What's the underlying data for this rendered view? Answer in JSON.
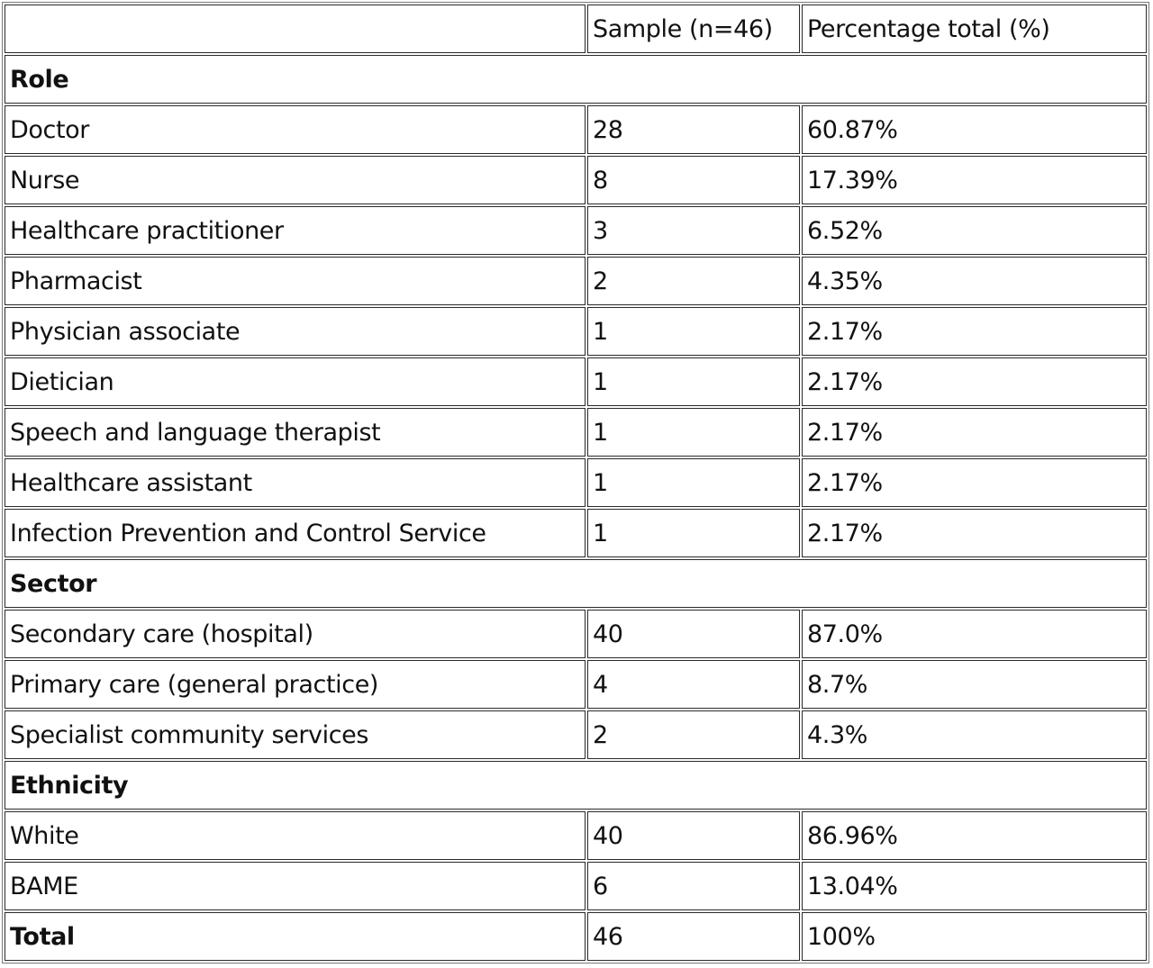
{
  "table": {
    "header": [
      "",
      "Sample (n=46)",
      "Percentage total (%)"
    ],
    "sections": [
      {
        "title": "Role",
        "rows": [
          [
            "Doctor",
            "28",
            "60.87%"
          ],
          [
            "Nurse",
            "8",
            "17.39%"
          ],
          [
            "Healthcare practitioner",
            "3",
            "6.52%"
          ],
          [
            "Pharmacist",
            "2",
            "4.35%"
          ],
          [
            "Physician associate",
            "1",
            "2.17%"
          ],
          [
            "Dietician",
            "1",
            "2.17%"
          ],
          [
            "Speech and language therapist",
            "1",
            "2.17%"
          ],
          [
            "Healthcare assistant",
            "1",
            "2.17%"
          ],
          [
            "Infection Prevention and Control Service",
            "1",
            "2.17%"
          ]
        ]
      },
      {
        "title": "Sector",
        "rows": [
          [
            "Secondary care (hospital)",
            "40",
            "87.0%"
          ],
          [
            "Primary care (general practice)",
            "4",
            "8.7%"
          ],
          [
            "Specialist community services",
            "2",
            "4.3%"
          ]
        ]
      },
      {
        "title": "Ethnicity",
        "rows": [
          [
            "White",
            "40",
            "86.96%"
          ],
          [
            "BAME",
            "6",
            "13.04%"
          ]
        ]
      }
    ],
    "total": [
      "Total",
      "46",
      "100%"
    ]
  }
}
